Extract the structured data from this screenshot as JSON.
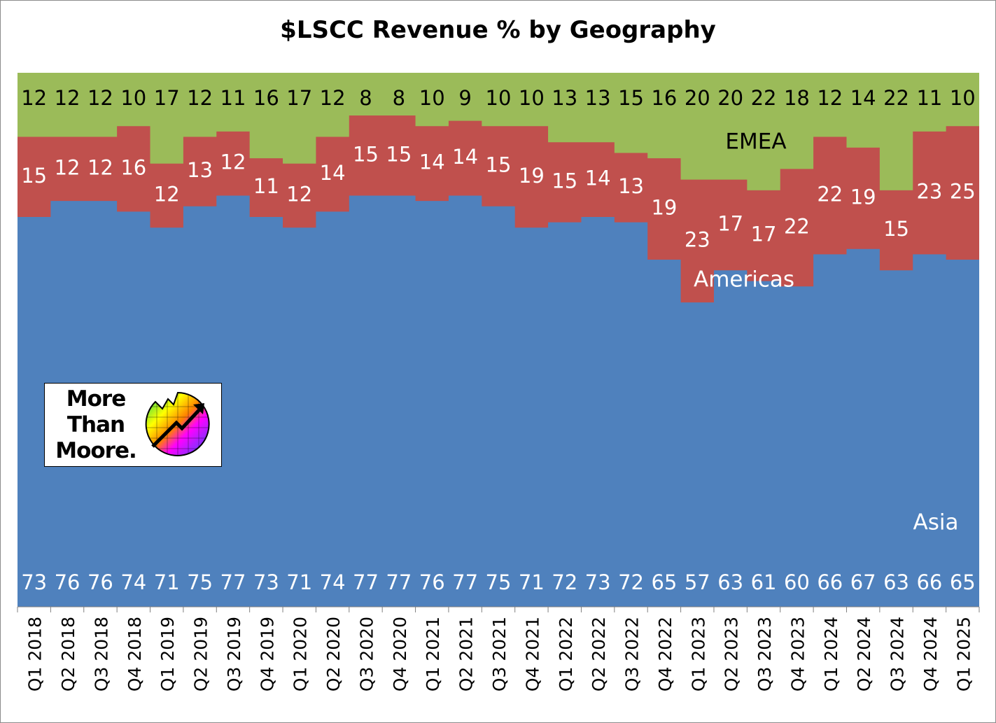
{
  "chart_data": {
    "type": "area",
    "title": "$LSCC Revenue % by Geography",
    "xlabel": "",
    "ylabel": "",
    "ylim": [
      0,
      100
    ],
    "categories": [
      "Q1 2018",
      "Q2 2018",
      "Q3 2018",
      "Q4 2018",
      "Q1 2019",
      "Q2 2019",
      "Q3 2019",
      "Q4 2019",
      "Q1 2020",
      "Q2 2020",
      "Q3 2020",
      "Q4 2020",
      "Q1 2021",
      "Q2 2021",
      "Q3 2021",
      "Q4 2021",
      "Q1 2022",
      "Q2 2022",
      "Q3 2022",
      "Q4 2022",
      "Q1 2023",
      "Q2 2023",
      "Q3 2023",
      "Q4 2023",
      "Q1 2024",
      "Q2 2024",
      "Q3 2024",
      "Q4 2024",
      "Q1 2025"
    ],
    "stacked": true,
    "step": true,
    "grid": false,
    "legend": "none",
    "series": [
      {
        "name": "Asia",
        "color": "#4f81bd",
        "values": [
          73,
          76,
          76,
          74,
          71,
          75,
          77,
          73,
          71,
          74,
          77,
          77,
          76,
          77,
          75,
          71,
          72,
          73,
          72,
          65,
          57,
          63,
          61,
          60,
          66,
          67,
          63,
          66,
          65
        ]
      },
      {
        "name": "Americas",
        "color": "#c0504d",
        "values": [
          15,
          12,
          12,
          16,
          12,
          13,
          12,
          11,
          12,
          14,
          15,
          15,
          14,
          14,
          15,
          19,
          15,
          14,
          13,
          19,
          23,
          17,
          17,
          22,
          22,
          19,
          15,
          23,
          25
        ]
      },
      {
        "name": "EMEA",
        "color": "#9bbb59",
        "values": [
          12,
          12,
          12,
          10,
          17,
          12,
          11,
          16,
          17,
          12,
          8,
          8,
          10,
          9,
          10,
          10,
          13,
          13,
          15,
          16,
          20,
          20,
          22,
          18,
          12,
          14,
          22,
          11,
          10
        ]
      }
    ]
  },
  "logo": {
    "text": "More Than Moore.",
    "icon": "rainbow-chip-arrow-icon"
  }
}
